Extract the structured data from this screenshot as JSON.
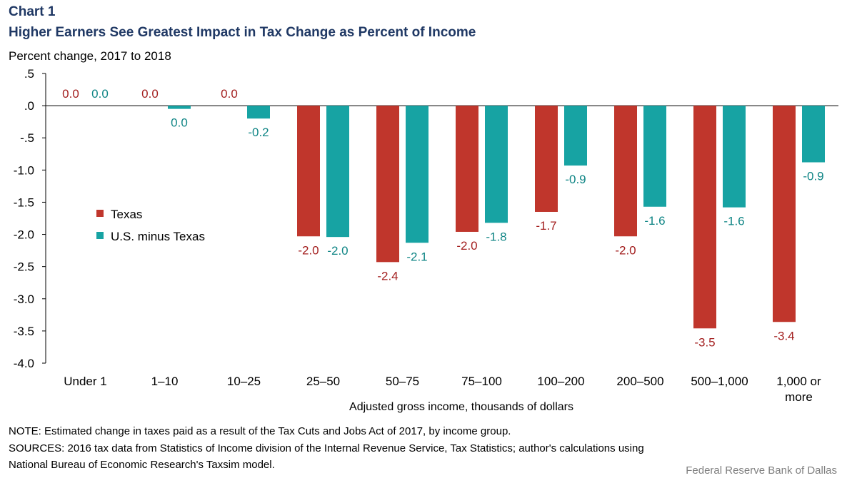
{
  "header": {
    "chart_label": "Chart 1",
    "title": "Higher Earners See Greatest Impact  in Tax Change as Percent of Income",
    "unit_label": "Percent change, 2017 to 2018"
  },
  "footer": {
    "note": "NOTE: Estimated change in taxes paid as a result of the Tax Cuts and Jobs Act of 2017, by income group.",
    "sources_line1": "SOURCES: 2016 tax data from Statistics of Income division of the Internal Revenue Service, Tax Statistics; author's calculations using",
    "sources_line2": "National Bureau of Economic Research's Taxsim model.",
    "credit": "Federal Reserve Bank of Dallas"
  },
  "chart_data": {
    "type": "bar",
    "xlabel": "Adjusted gross income, thousands of dollars",
    "ylabel": "Percent change, 2017 to 2018",
    "ylim": [
      -4.0,
      0.5
    ],
    "yticks": [
      0.5,
      0.0,
      -0.5,
      -1.0,
      -1.5,
      -2.0,
      -2.5,
      -3.0,
      -3.5,
      -4.0
    ],
    "ytick_labels": [
      ".5",
      ".0",
      "-.5",
      "-1.0",
      "-1.5",
      "-2.0",
      "-2.5",
      "-3.0",
      "-3.5",
      "-4.0"
    ],
    "grid": false,
    "legend_position": "left",
    "categories": [
      "Under 1",
      "1–10",
      "10–25",
      "25–50",
      "50–75",
      "75–100",
      "100–200",
      "200–500",
      "500–1,000",
      "1,000 or more"
    ],
    "category_lines": [
      [
        "Under 1"
      ],
      [
        "1–10"
      ],
      [
        "10–25"
      ],
      [
        "25–50"
      ],
      [
        "50–75"
      ],
      [
        "75–100"
      ],
      [
        "100–200"
      ],
      [
        "200–500"
      ],
      [
        "500–1,000"
      ],
      [
        "1,000 or",
        "more"
      ]
    ],
    "series": [
      {
        "name": "Texas",
        "color": "#c0362c",
        "label_color": "#a31f1f",
        "values": [
          0.0,
          0.0,
          0.0,
          -2.03,
          -2.43,
          -1.96,
          -1.65,
          -2.03,
          -3.46,
          -3.36
        ],
        "labels": [
          "0.0",
          "0.0",
          "0.0",
          "-2.0",
          "-2.4",
          "-2.0",
          "-1.7",
          "-2.0",
          "-3.5",
          "-3.4"
        ]
      },
      {
        "name": "U.S. minus Texas",
        "color": "#17a3a3",
        "label_color": "#0f8585",
        "values": [
          0.0,
          -0.05,
          -0.2,
          -2.04,
          -2.13,
          -1.82,
          -0.93,
          -1.57,
          -1.58,
          -0.88
        ],
        "labels": [
          "0.0",
          "0.0",
          "-0.2",
          "-2.0",
          "-2.1",
          "-1.8",
          "-0.9",
          "-1.6",
          "-1.6",
          "-0.9"
        ]
      }
    ]
  }
}
